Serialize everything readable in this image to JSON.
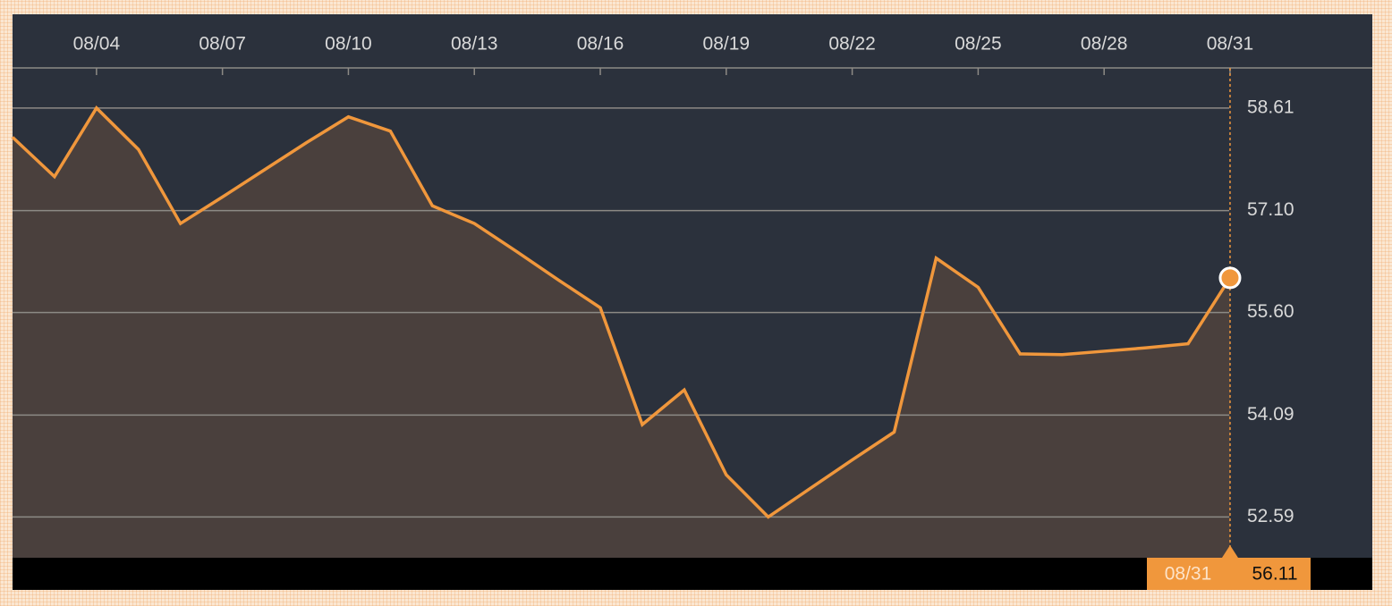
{
  "chart_data": {
    "type": "area",
    "categories": [
      null,
      null,
      "08/04",
      null,
      null,
      "08/07",
      null,
      null,
      "08/10",
      null,
      null,
      "08/13",
      null,
      null,
      "08/16",
      null,
      null,
      "08/19",
      null,
      null,
      "08/22",
      null,
      null,
      "08/25",
      null,
      null,
      "08/28",
      null,
      null,
      "08/31"
    ],
    "values": [
      58.18,
      57.6,
      58.61,
      58.0,
      56.91,
      57.3,
      57.7,
      58.1,
      58.48,
      58.27,
      57.17,
      56.91,
      56.5,
      56.08,
      55.67,
      53.95,
      54.46,
      53.21,
      52.59,
      53.01,
      53.43,
      53.84,
      56.4,
      55.97,
      54.99,
      54.98,
      55.03,
      55.08,
      55.14,
      56.11
    ],
    "color": "#f0973c",
    "ylim": [
      51.99,
      59.2
    ],
    "yticks": [
      52.59,
      54.09,
      {
        "value": 55.6,
        "label": "55.60"
      },
      {
        "value": 57.1,
        "label": "57.10"
      },
      58.61
    ],
    "grid": true
  }
}
